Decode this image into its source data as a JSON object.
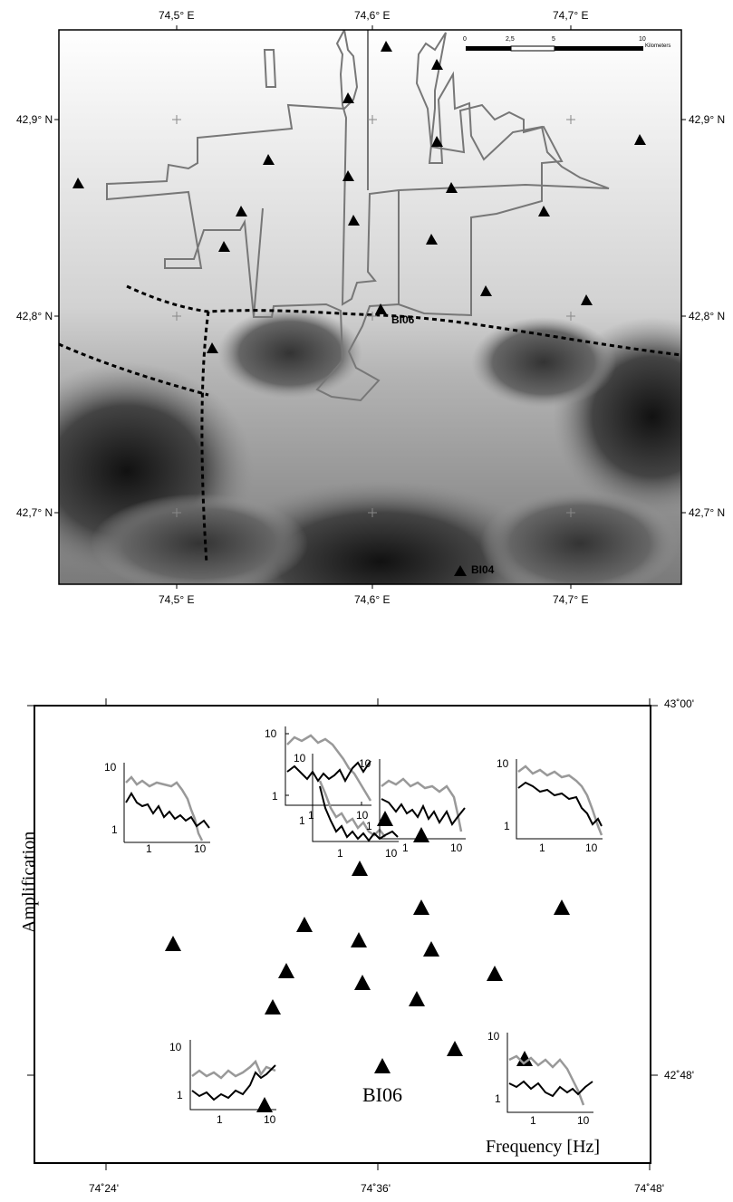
{
  "top_map": {
    "lon_labels": [
      "74,5° E",
      "74,6° E",
      "74,7° E"
    ],
    "lat_labels": [
      "42,9° N",
      "42,8° N",
      "42,7° N"
    ],
    "scalebar": {
      "ticks": [
        "0",
        "2,5",
        "5",
        "10"
      ],
      "unit": "Kilometers"
    },
    "station_labels": [
      "BI06",
      "BI04"
    ],
    "colors": {
      "boundary": "#777777",
      "fault": "#000000",
      "station": "#000000"
    }
  },
  "bottom_map": {
    "lon_labels": [
      "74˚24'",
      "74˚36'",
      "74˚48'"
    ],
    "lat_labels": [
      "43˚00'",
      "42˚48'"
    ],
    "station_label": "BI06",
    "y_axis_label": "Amplification",
    "x_axis_label": "Frequency [Hz]",
    "inset_ticks": {
      "y": [
        "10",
        "1"
      ],
      "x": [
        "1",
        "10"
      ]
    },
    "series_colors": {
      "horizontal": "#000000",
      "vertical": "#999999"
    }
  }
}
